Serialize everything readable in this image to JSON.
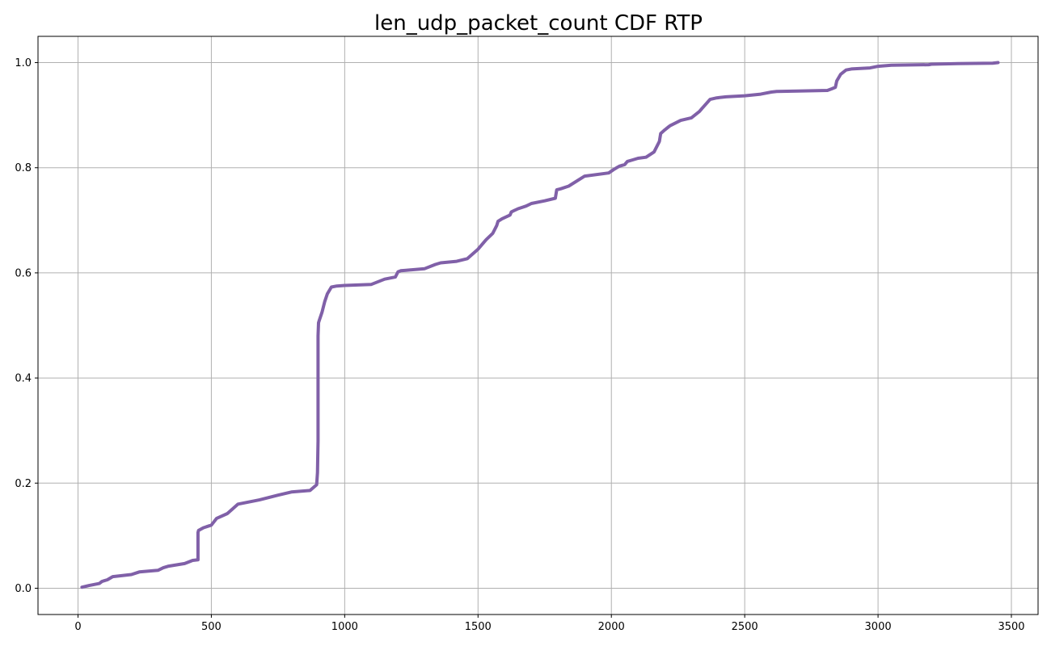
{
  "chart_data": {
    "type": "line",
    "title": "len_udp_packet_count CDF RTP",
    "xlabel": "",
    "ylabel": "",
    "xlim": [
      -150,
      3600
    ],
    "ylim": [
      -0.05,
      1.05
    ],
    "xticks": [
      0,
      500,
      1000,
      1500,
      2000,
      2500,
      3000,
      3500
    ],
    "yticks": [
      0.0,
      0.2,
      0.4,
      0.6,
      0.8,
      1.0
    ],
    "xtick_labels": [
      "0",
      "500",
      "1000",
      "1500",
      "2000",
      "2500",
      "3000",
      "3500"
    ],
    "ytick_labels": [
      "0.0",
      "0.2",
      "0.4",
      "0.6",
      "0.8",
      "1.0"
    ],
    "grid": true,
    "color": "#8060a8",
    "series": [
      {
        "x": [
          15,
          40,
          80,
          90,
          110,
          130,
          200,
          230,
          300,
          320,
          340,
          400,
          430,
          450,
          450,
          452,
          470,
          500,
          520,
          560,
          600,
          680,
          750,
          800,
          870,
          895,
          898,
          900,
          900,
          902,
          905,
          915,
          925,
          935,
          950,
          970,
          1000,
          1100,
          1150,
          1190,
          1200,
          1210,
          1230,
          1300,
          1340,
          1360,
          1420,
          1460,
          1500,
          1530,
          1555,
          1570,
          1575,
          1590,
          1620,
          1625,
          1650,
          1680,
          1700,
          1750,
          1790,
          1795,
          1810,
          1840,
          1900,
          1990,
          2010,
          2030,
          2050,
          2060,
          2080,
          2100,
          2130,
          2160,
          2180,
          2185,
          2200,
          2215,
          2220,
          2260,
          2300,
          2330,
          2340,
          2370,
          2395,
          2430,
          2500,
          2560,
          2600,
          2620,
          2700,
          2810,
          2825,
          2840,
          2845,
          2860,
          2880,
          2900,
          2970,
          3000,
          3050,
          3190,
          3200,
          3300,
          3430,
          3450
        ],
        "y": [
          0.002,
          0.005,
          0.009,
          0.013,
          0.016,
          0.022,
          0.026,
          0.031,
          0.034,
          0.039,
          0.042,
          0.047,
          0.053,
          0.054,
          0.106,
          0.11,
          0.115,
          0.12,
          0.133,
          0.142,
          0.16,
          0.168,
          0.177,
          0.183,
          0.186,
          0.197,
          0.22,
          0.28,
          0.48,
          0.505,
          0.51,
          0.525,
          0.545,
          0.56,
          0.573,
          0.575,
          0.576,
          0.578,
          0.588,
          0.592,
          0.602,
          0.604,
          0.605,
          0.608,
          0.616,
          0.619,
          0.622,
          0.627,
          0.645,
          0.663,
          0.675,
          0.69,
          0.698,
          0.703,
          0.71,
          0.716,
          0.722,
          0.727,
          0.732,
          0.737,
          0.742,
          0.758,
          0.76,
          0.765,
          0.784,
          0.79,
          0.797,
          0.803,
          0.806,
          0.812,
          0.815,
          0.818,
          0.82,
          0.83,
          0.85,
          0.865,
          0.872,
          0.878,
          0.88,
          0.89,
          0.895,
          0.907,
          0.913,
          0.93,
          0.933,
          0.935,
          0.937,
          0.94,
          0.944,
          0.945,
          0.946,
          0.947,
          0.95,
          0.953,
          0.965,
          0.978,
          0.986,
          0.988,
          0.99,
          0.993,
          0.995,
          0.996,
          0.997,
          0.998,
          0.999,
          1.0
        ]
      }
    ]
  }
}
